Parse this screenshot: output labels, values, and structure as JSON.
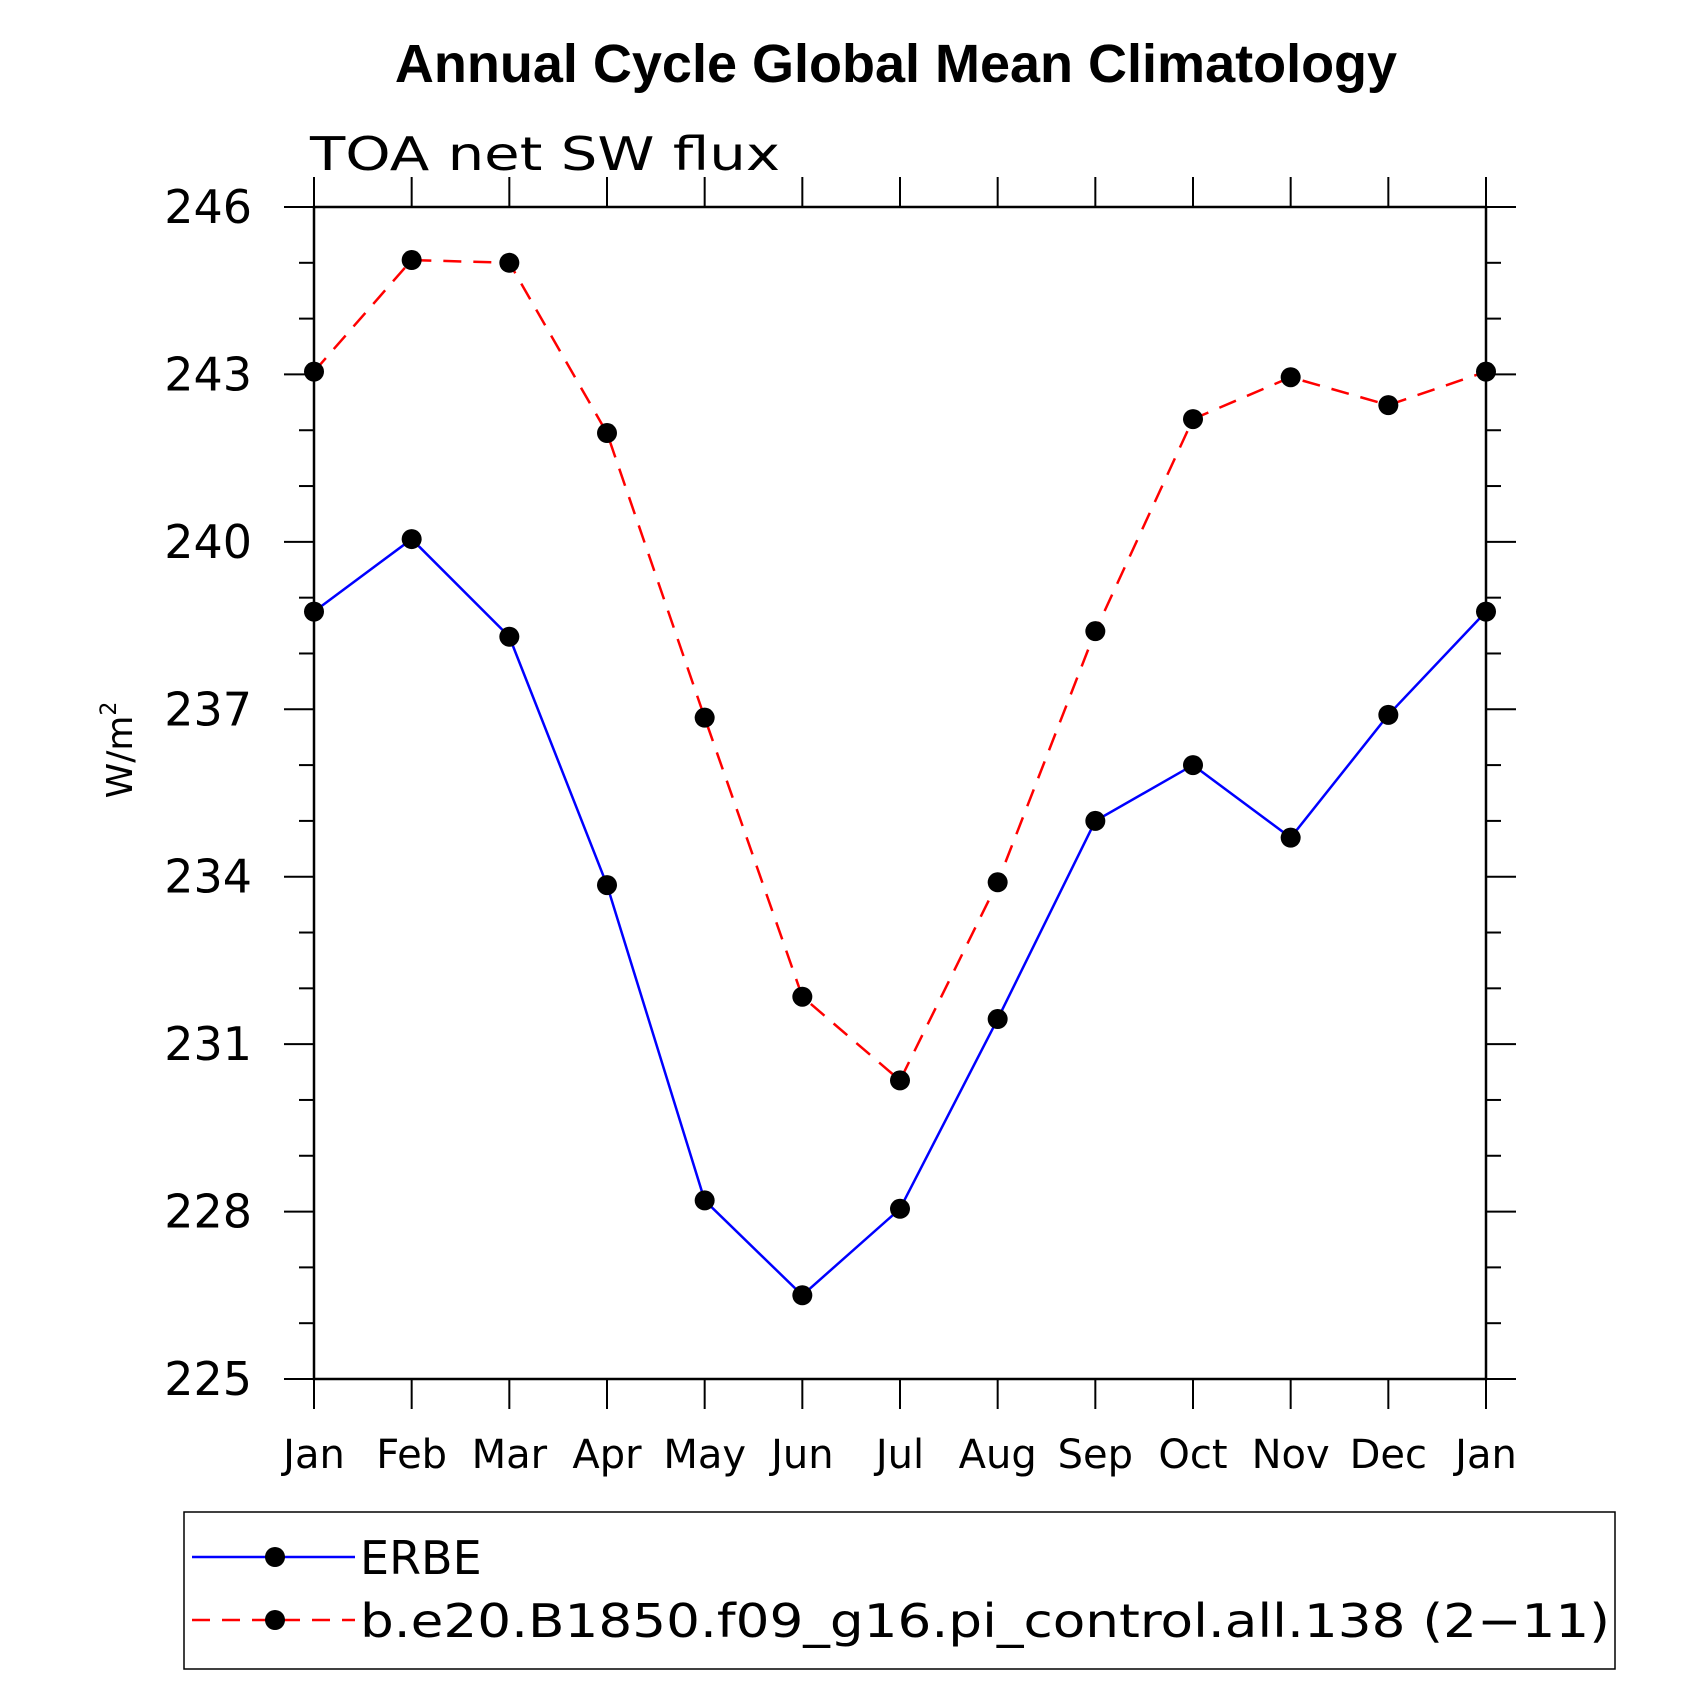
{
  "chart_data": {
    "type": "line",
    "title": "Annual Cycle Global Mean Climatology",
    "subtitle": "TOA net SW flux",
    "ylabel": "W/m",
    "ylabel_superscript": "2",
    "xlabel": "",
    "ylim": [
      225,
      246
    ],
    "yticks": [
      "225",
      "228",
      "231",
      "234",
      "237",
      "240",
      "243",
      "246"
    ],
    "categories": [
      "Jan",
      "Feb",
      "Mar",
      "Apr",
      "May",
      "Jun",
      "Jul",
      "Aug",
      "Sep",
      "Oct",
      "Nov",
      "Dec",
      "Jan"
    ],
    "series": [
      {
        "name": "ERBE",
        "color": "#0000ff",
        "dash": "solid",
        "values": [
          238.75,
          240.05,
          238.3,
          233.85,
          228.2,
          226.5,
          228.05,
          231.45,
          235.0,
          236.0,
          234.7,
          236.9,
          238.75
        ]
      },
      {
        "name": "b.e20.B1850.f09_g16.pi_control.all.138 (2−11)",
        "color": "#ff0000",
        "dash": "dashed",
        "values": [
          243.05,
          245.05,
          245.0,
          241.95,
          236.85,
          231.85,
          230.35,
          233.9,
          238.4,
          242.2,
          242.95,
          242.45,
          243.05
        ]
      }
    ],
    "marker_color": "#000000",
    "legend_position": "bottom"
  }
}
